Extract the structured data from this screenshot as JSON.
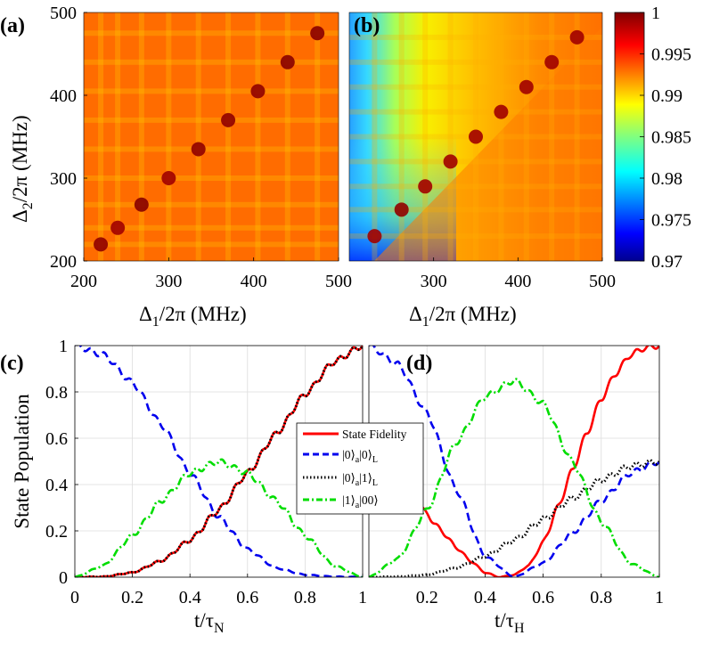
{
  "chart_data": [
    {
      "panel": "(a)",
      "type": "heatmap",
      "xlabel_main": "Δ",
      "xlabel_sub": "1",
      "xlabel_rest": "/2π (MHz)",
      "ylabel_main": "Δ",
      "ylabel_sub": "2",
      "ylabel_rest": "/2π (MHz)",
      "xlim": [
        200,
        500
      ],
      "ylim": [
        200,
        500
      ],
      "xticks": [
        "200",
        "300",
        "400",
        "500"
      ],
      "yticks": [
        "200",
        "300",
        "400",
        "500"
      ],
      "value_range": [
        0.97,
        1.0
      ],
      "background_value": 0.9955,
      "diagonal_resonances": [
        {
          "d": 220,
          "value": 0.9995
        },
        {
          "d": 240,
          "value": 0.999
        },
        {
          "d": 268,
          "value": 0.9998
        },
        {
          "d": 300,
          "value": 0.999
        },
        {
          "d": 335,
          "value": 0.9995
        },
        {
          "d": 370,
          "value": 0.9995
        },
        {
          "d": 405,
          "value": 0.9995
        },
        {
          "d": 440,
          "value": 0.9997
        },
        {
          "d": 475,
          "value": 0.9997
        }
      ]
    },
    {
      "panel": "(b)",
      "type": "heatmap",
      "xlabel_main": "Δ",
      "xlabel_sub": "1",
      "xlabel_rest": "/2π (MHz)",
      "xlim": [
        200,
        500
      ],
      "ylim": [
        200,
        500
      ],
      "xticks": [
        "300",
        "400",
        "500"
      ],
      "value_range": [
        0.97,
        1.0
      ],
      "low_corner_value": 0.972,
      "diagonal_resonances": [
        {
          "d": 230,
          "value": 0.999
        },
        {
          "d": 262,
          "value": 0.9995
        },
        {
          "d": 290,
          "value": 0.999
        },
        {
          "d": 320,
          "value": 0.999
        },
        {
          "d": 350,
          "value": 0.999
        },
        {
          "d": 380,
          "value": 0.999
        },
        {
          "d": 410,
          "value": 0.999
        },
        {
          "d": 440,
          "value": 0.999
        },
        {
          "d": 470,
          "value": 0.999
        }
      ]
    },
    {
      "type": "colorbar",
      "range": [
        0.97,
        1.0
      ],
      "ticks": [
        "1",
        "0.995",
        "0.99",
        "0.985",
        "0.98",
        "0.975",
        "0.97"
      ],
      "colormap": "jet"
    },
    {
      "panel": "(c)",
      "type": "line",
      "xlabel_main": "t/τ",
      "xlabel_sub": "N",
      "ylabel": "State Population",
      "xlim": [
        0,
        1
      ],
      "ylim": [
        0,
        1
      ],
      "xticks": [
        "0",
        "0.2",
        "0.4",
        "0.6",
        "0.8",
        "1"
      ],
      "yticks": [
        "0",
        "0.2",
        "0.4",
        "0.6",
        "0.8",
        "1"
      ],
      "grid": true,
      "series": [
        {
          "name": "State Fidelity",
          "color": "#ff0000",
          "style": "solid",
          "x": [
            0,
            0.1,
            0.2,
            0.3,
            0.4,
            0.5,
            0.6,
            0.7,
            0.8,
            0.9,
            1.0
          ],
          "values": [
            0,
            0.002,
            0.02,
            0.07,
            0.16,
            0.29,
            0.45,
            0.62,
            0.79,
            0.93,
            1.0
          ]
        },
        {
          "name": "|0⟩a|0⟩L",
          "color": "#0000ee",
          "style": "dashed",
          "x": [
            0,
            0.1,
            0.2,
            0.3,
            0.4,
            0.5,
            0.6,
            0.7,
            0.8,
            0.9,
            1.0
          ],
          "values": [
            1.0,
            0.96,
            0.84,
            0.66,
            0.45,
            0.26,
            0.12,
            0.04,
            0.01,
            0.002,
            0
          ]
        },
        {
          "name": "|0⟩a|1⟩L",
          "color": "#000000",
          "style": "dotted",
          "x": [
            0,
            0.1,
            0.2,
            0.3,
            0.4,
            0.5,
            0.6,
            0.7,
            0.8,
            0.9,
            1.0
          ],
          "values": [
            0,
            0.002,
            0.02,
            0.07,
            0.16,
            0.29,
            0.45,
            0.62,
            0.79,
            0.93,
            1.0
          ]
        },
        {
          "name": "|1⟩a|00⟩",
          "color": "#00dd00",
          "style": "dashdot",
          "x": [
            0,
            0.1,
            0.2,
            0.3,
            0.4,
            0.5,
            0.6,
            0.7,
            0.8,
            0.9,
            1.0
          ],
          "values": [
            0,
            0.05,
            0.18,
            0.33,
            0.45,
            0.5,
            0.45,
            0.33,
            0.18,
            0.05,
            0
          ]
        }
      ]
    },
    {
      "panel": "(d)",
      "type": "line",
      "xlabel_main": "t/τ",
      "xlabel_sub": "H",
      "xlim": [
        0,
        1
      ],
      "ylim": [
        0,
        1
      ],
      "xticks": [
        "0.2",
        "0.4",
        "0.6",
        "0.8",
        "1"
      ],
      "grid": true,
      "series": [
        {
          "name": "State Fidelity",
          "color": "#ff0000",
          "style": "solid",
          "x": [
            0.17,
            0.2,
            0.25,
            0.3,
            0.35,
            0.4,
            0.45,
            0.5,
            0.55,
            0.6,
            0.65,
            0.7,
            0.75,
            0.8,
            0.85,
            0.9,
            0.95,
            1.0
          ],
          "values": [
            0.32,
            0.27,
            0.2,
            0.13,
            0.07,
            0.02,
            0.0,
            0.01,
            0.05,
            0.15,
            0.3,
            0.46,
            0.62,
            0.77,
            0.88,
            0.96,
            0.99,
            1.0
          ]
        },
        {
          "name": "|0⟩a|0⟩L",
          "color": "#0000ee",
          "style": "dashed",
          "x": [
            0,
            0.1,
            0.2,
            0.3,
            0.4,
            0.5,
            0.6,
            0.7,
            0.8,
            0.9,
            1.0
          ],
          "values": [
            1.0,
            0.92,
            0.71,
            0.38,
            0.09,
            0.0,
            0.06,
            0.19,
            0.33,
            0.45,
            0.5
          ]
        },
        {
          "name": "|0⟩a|1⟩L",
          "color": "#000000",
          "style": "dotted",
          "x": [
            0,
            0.1,
            0.2,
            0.3,
            0.4,
            0.5,
            0.6,
            0.7,
            0.8,
            0.9,
            1.0
          ],
          "values": [
            0,
            0.002,
            0.01,
            0.04,
            0.09,
            0.16,
            0.25,
            0.34,
            0.42,
            0.48,
            0.5
          ]
        },
        {
          "name": "|1⟩a|00⟩",
          "color": "#00dd00",
          "style": "dashdot",
          "x": [
            0,
            0.1,
            0.2,
            0.3,
            0.4,
            0.5,
            0.6,
            0.7,
            0.8,
            0.9,
            1.0
          ],
          "values": [
            0,
            0.08,
            0.29,
            0.58,
            0.78,
            0.85,
            0.75,
            0.5,
            0.24,
            0.06,
            0
          ]
        }
      ]
    }
  ],
  "legend": {
    "location": "center",
    "entries": [
      {
        "main": "State Fidelity"
      },
      {
        "main": "|0⟩",
        "sub1": "a",
        "mid": "|0⟩",
        "sub2": "L"
      },
      {
        "main": "|0⟩",
        "sub1": "a",
        "mid": "|1⟩",
        "sub2": "L"
      },
      {
        "main": "|1⟩",
        "sub1": "a",
        "mid": "|00⟩",
        "sub2": ""
      }
    ]
  }
}
